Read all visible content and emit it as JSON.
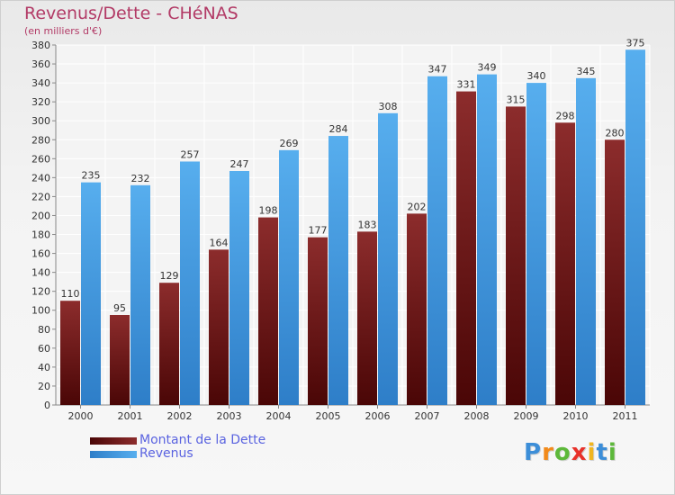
{
  "title": "Revenus/Dette - CHéNAS",
  "subtitle": "(en milliers d'€)",
  "colors": {
    "debt": "#7a1a1a",
    "revenue": "#4a9ee0",
    "title": "#b23a66",
    "legend_text": "#5a63e0"
  },
  "legend": {
    "debt_label": "Montant de la Dette",
    "revenue_label": "Revenus"
  },
  "logo": {
    "letters": [
      "P",
      "r",
      "o",
      "x",
      "i",
      "t",
      "i"
    ],
    "colors": [
      "#3c8ed8",
      "#f28a1a",
      "#5db83a",
      "#e8312a",
      "#f0b51e",
      "#3c8ed8",
      "#5db83a"
    ]
  },
  "chart_data": {
    "type": "bar",
    "title": "Revenus/Dette - CHéNAS",
    "subtitle": "(en milliers d'€)",
    "categories": [
      "2000",
      "2001",
      "2002",
      "2003",
      "2004",
      "2005",
      "2006",
      "2007",
      "2008",
      "2009",
      "2010",
      "2011"
    ],
    "series": [
      {
        "name": "Montant de la Dette",
        "values": [
          110,
          95,
          129,
          164,
          198,
          177,
          183,
          202,
          331,
          315,
          298,
          280
        ]
      },
      {
        "name": "Revenus",
        "values": [
          235,
          232,
          257,
          247,
          269,
          284,
          308,
          347,
          349,
          340,
          345,
          375
        ]
      }
    ],
    "ylim": [
      0,
      380
    ],
    "yticks": [
      0,
      20,
      40,
      60,
      80,
      100,
      120,
      140,
      160,
      180,
      200,
      220,
      240,
      260,
      280,
      300,
      320,
      340,
      360,
      380
    ],
    "grid": true,
    "legend_position": "bottom-left"
  }
}
